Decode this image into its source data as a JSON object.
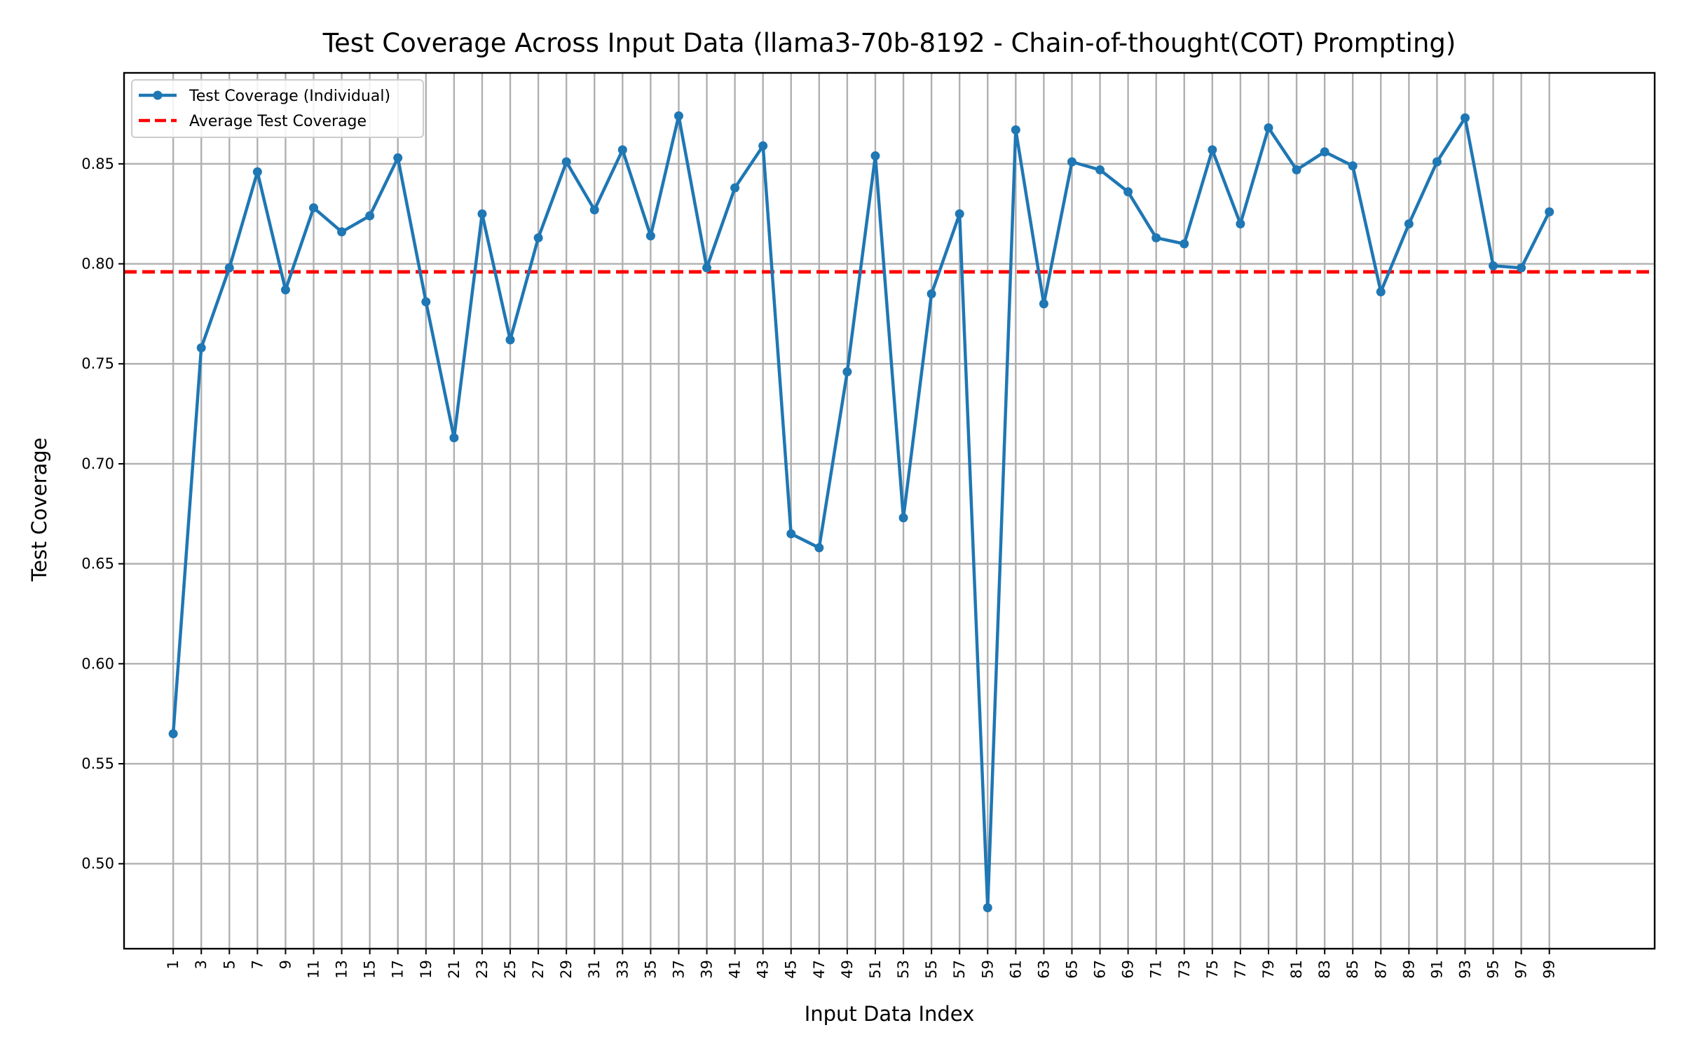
{
  "chart_data": {
    "type": "line",
    "title": "Test Coverage Across Input Data (llama3-70b-8192 - Chain-of-thought(COT) Prompting)",
    "xlabel": "Input Data Index",
    "ylabel": "Test Coverage",
    "xlim": [
      -2.5,
      106.5
    ],
    "ylim": [
      0.4575,
      0.8955
    ],
    "x_ticks": [
      1,
      3,
      5,
      7,
      9,
      11,
      13,
      15,
      17,
      19,
      21,
      23,
      25,
      27,
      29,
      31,
      33,
      35,
      37,
      39,
      41,
      43,
      45,
      47,
      49,
      51,
      53,
      55,
      57,
      59,
      61,
      63,
      65,
      67,
      69,
      71,
      73,
      75,
      77,
      79,
      81,
      83,
      85,
      87,
      89,
      91,
      93,
      95,
      97,
      99
    ],
    "y_ticks": [
      0.5,
      0.55,
      0.6,
      0.65,
      0.7,
      0.75,
      0.8,
      0.85
    ],
    "y_tick_labels": [
      "0.50",
      "0.55",
      "0.60",
      "0.65",
      "0.70",
      "0.75",
      "0.80",
      "0.85"
    ],
    "grid": true,
    "legend_position": "top-left",
    "series": [
      {
        "name": "Test Coverage (Individual)",
        "style": "solid-with-markers",
        "color": "#1f77b4",
        "x": [
          1,
          3,
          5,
          7,
          9,
          11,
          13,
          15,
          17,
          19,
          21,
          23,
          25,
          27,
          29,
          31,
          33,
          35,
          37,
          39,
          41,
          43,
          45,
          47,
          49,
          51,
          53,
          55,
          57,
          59,
          61,
          63,
          65,
          67,
          69,
          71,
          73,
          75,
          77,
          79,
          81,
          83,
          85,
          87,
          89,
          91,
          93,
          95,
          97,
          99
        ],
        "values": [
          0.565,
          0.758,
          0.798,
          0.846,
          0.787,
          0.828,
          0.816,
          0.824,
          0.853,
          0.781,
          0.713,
          0.825,
          0.762,
          0.813,
          0.851,
          0.827,
          0.857,
          0.814,
          0.874,
          0.798,
          0.838,
          0.859,
          0.665,
          0.658,
          0.746,
          0.854,
          0.673,
          0.785,
          0.825,
          0.478,
          0.867,
          0.78,
          0.851,
          0.847,
          0.836,
          0.813,
          0.81,
          0.857,
          0.82,
          0.868,
          0.847,
          0.856,
          0.849,
          0.786,
          0.82,
          0.851,
          0.873,
          0.799,
          0.798,
          0.826
        ]
      },
      {
        "name": "Average Test Coverage",
        "style": "dashed",
        "color": "#ff0000",
        "value": 0.796
      }
    ]
  }
}
